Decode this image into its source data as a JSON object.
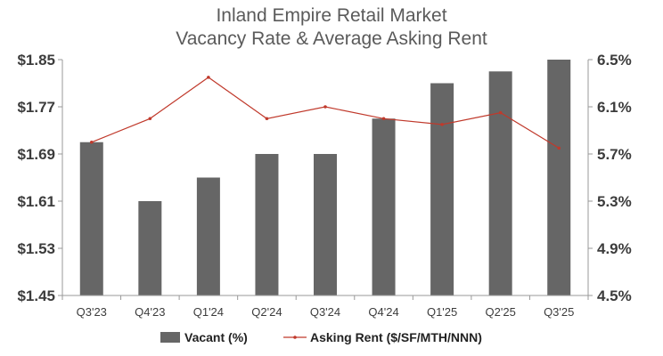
{
  "chart_data": {
    "type": "bar",
    "title": "Inland Empire Retail Market",
    "subtitle": "Vacancy Rate & Average Asking Rent",
    "categories": [
      "Q3'23",
      "Q4'23",
      "Q1'24",
      "Q2'24",
      "Q3'24",
      "Q4'24",
      "Q1'25",
      "Q2'25",
      "Q3'25"
    ],
    "series": [
      {
        "name": "Vacant (%)",
        "type": "bar",
        "axis": "right",
        "color": "#666666",
        "values": [
          5.8,
          5.3,
          5.5,
          5.7,
          5.7,
          6.0,
          6.3,
          6.4,
          6.5
        ]
      },
      {
        "name": "Asking Rent ($/SF/MTH/NNN)",
        "type": "line",
        "axis": "left",
        "color": "#c0392b",
        "values": [
          1.71,
          1.75,
          1.82,
          1.75,
          1.77,
          1.75,
          1.74,
          1.76,
          1.7
        ]
      }
    ],
    "left_axis": {
      "ylim": [
        1.45,
        1.85
      ],
      "ticks": [
        "$1.85",
        "$1.77",
        "$1.69",
        "$1.61",
        "$1.53",
        "$1.45"
      ]
    },
    "right_axis": {
      "ylim": [
        4.5,
        6.5
      ],
      "ticks": [
        "6.5%",
        "6.1%",
        "5.7%",
        "5.3%",
        "4.9%",
        "4.5%"
      ]
    },
    "grid": false,
    "legend_position": "bottom"
  }
}
